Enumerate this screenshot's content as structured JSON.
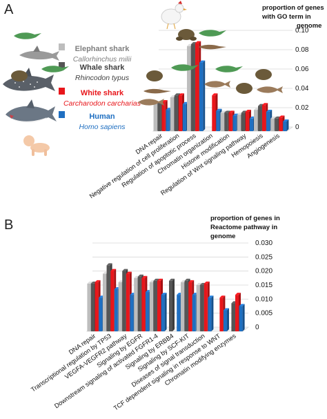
{
  "panels": {
    "a": {
      "letter": "A",
      "ylabel": [
        "proportion of genes",
        "with GO term in",
        "genome"
      ]
    },
    "b": {
      "letter": "B",
      "ylabel": [
        "proportion of genes in",
        "Reactome pathway in",
        "genome"
      ]
    }
  },
  "legend": [
    {
      "common": "Elephant shark",
      "latin": "Callorhinchus milii",
      "color": "#bdbdbd",
      "text_color": "#7f7f7f"
    },
    {
      "common": "Whale shark",
      "latin": "Rhincodon typus",
      "color": "#555555",
      "text_color": "#404040"
    },
    {
      "common": "White shark",
      "latin": "Carcharodon carcharias",
      "color": "#e8161b",
      "text_color": "#e8161b"
    },
    {
      "common": "Human",
      "latin": "Homo sapiens",
      "color": "#1f6fc1",
      "text_color": "#1f6fc1"
    }
  ],
  "chart_data": [
    {
      "type": "bar",
      "categories": [
        "DNA repair",
        "Negative regulation of cell proliferation",
        "Regulation of apoptotic process",
        "Chromatin organization",
        "Histone modification",
        "Regulation of Wnt signaling pathway",
        "Hemopoiesis",
        "Angiogenesis"
      ],
      "series": [
        {
          "name": "Elephant shark",
          "values": [
            0.029,
            0.035,
            0.088,
            null,
            0.019,
            0.017,
            0.022,
            0.013
          ]
        },
        {
          "name": "Whale shark",
          "values": [
            0.029,
            0.037,
            0.09,
            null,
            0.019,
            0.019,
            0.026,
            0.013
          ]
        },
        {
          "name": "White shark",
          "values": [
            0.03,
            0.037,
            0.091,
            0.037,
            0.019,
            0.02,
            0.027,
            0.014
          ]
        },
        {
          "name": "Human",
          "values": [
            0.022,
            0.028,
            0.071,
            0.021,
            0.016,
            0.013,
            0.02,
            0.01
          ]
        }
      ],
      "y_ticks": [
        "0",
        "0.02",
        "0.04",
        "0.06",
        "0.08",
        "0.10"
      ],
      "ylim": [
        0,
        0.1
      ],
      "grid": true
    },
    {
      "type": "bar",
      "categories": [
        "DNA repair",
        "Transcriptional regulation by TP53",
        "VEGFA-VEGFR2 pathway",
        "Signaling by EGFR",
        "Downstream signaling of activated FGFR1-4",
        "Signaling by ERBB4",
        "Signaling by SCF-KIT",
        "Diseases of signal transduction",
        "TCF dependent signaling in response to WNT",
        "Chromatin modifying enzymes"
      ],
      "series": [
        {
          "name": "Elephant shark",
          "values": [
            0.017,
            0.0205,
            0.0175,
            0.019,
            0.0175,
            null,
            0.0175,
            0.0165,
            null,
            null
          ]
        },
        {
          "name": "Whale shark",
          "values": [
            0.017,
            0.0235,
            0.0215,
            0.0195,
            0.018,
            0.018,
            0.018,
            0.0165,
            null,
            0.01
          ]
        },
        {
          "name": "White shark",
          "values": [
            0.0175,
            0.0215,
            0.0205,
            0.019,
            0.018,
            null,
            0.0175,
            0.017,
            0.012,
            0.013
          ]
        },
        {
          "name": "Human",
          "values": [
            0.012,
            0.015,
            0.013,
            0.014,
            0.013,
            0.013,
            0.013,
            0.012,
            0.0075,
            0.009
          ]
        }
      ],
      "y_ticks": [
        "0",
        "0.005",
        "0.010",
        "0.015",
        "0.020",
        "0.025",
        "0.030"
      ],
      "ylim": [
        0,
        0.03
      ],
      "grid": true
    }
  ],
  "illustrations": {
    "animals": [
      "elephant-shark",
      "whale-shark",
      "white-shark",
      "human-baby"
    ],
    "phylogeny_icons": [
      "chicken",
      "lizard",
      "frog",
      "salamander",
      "fish"
    ]
  }
}
